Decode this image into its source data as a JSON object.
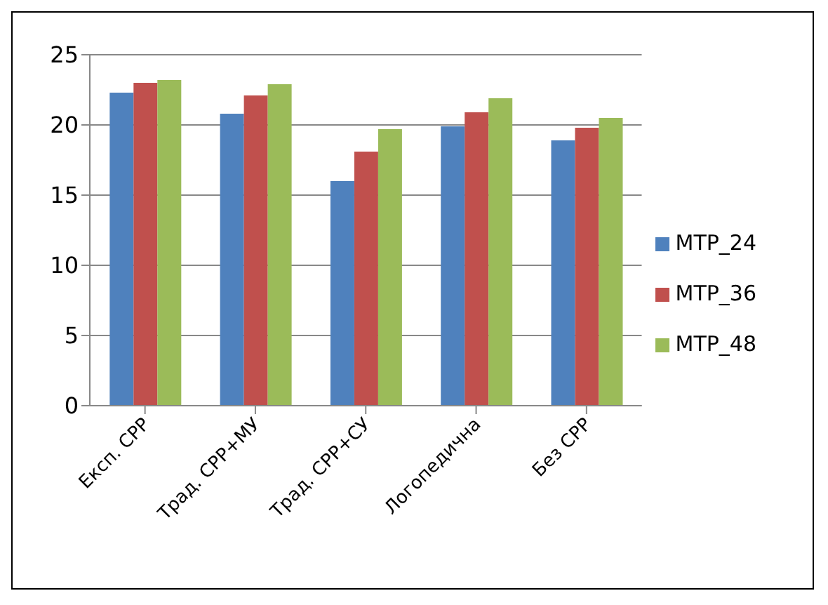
{
  "chart_data": {
    "type": "bar",
    "categories": [
      "Експ. СРР",
      "Трад. СРР+МУ",
      "Трад. СРР+СУ",
      "Логопедична",
      "Без СРР"
    ],
    "series": [
      {
        "name": "МТР_24",
        "color": "#4f81bd",
        "values": [
          22.3,
          20.8,
          16,
          19.9,
          18.9
        ]
      },
      {
        "name": "МТР_36",
        "color": "#c0504d",
        "values": [
          23,
          22.1,
          18.1,
          20.9,
          19.8
        ]
      },
      {
        "name": "МТР_48",
        "color": "#9bbb59",
        "values": [
          23.2,
          22.9,
          19.7,
          21.9,
          20.5
        ]
      }
    ],
    "ylim": [
      0,
      25
    ],
    "yticks": [
      0,
      5,
      10,
      15,
      20,
      25
    ],
    "grid": "y",
    "legend": "right"
  }
}
